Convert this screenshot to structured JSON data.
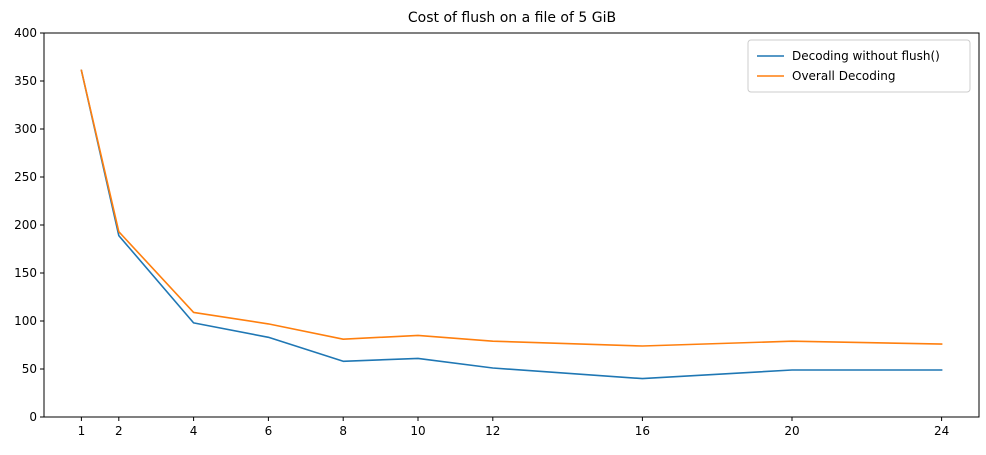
{
  "chart_data": {
    "type": "line",
    "title": "Cost of flush on a file of 5 GiB",
    "xlabel": "",
    "ylabel": "",
    "x": [
      1,
      2,
      4,
      6,
      8,
      10,
      12,
      16,
      20,
      24
    ],
    "xticks": [
      1,
      2,
      4,
      6,
      8,
      10,
      12,
      16,
      20,
      24
    ],
    "xlim": [
      0,
      25
    ],
    "ylim": [
      0,
      400
    ],
    "yticks": [
      0,
      50,
      100,
      150,
      200,
      250,
      300,
      350,
      400
    ],
    "grid": false,
    "legend_position": "top-right",
    "series": [
      {
        "name": "Decoding without flush()",
        "color": "#1f77b4",
        "values": [
          361,
          189,
          98,
          83,
          58,
          61,
          51,
          40,
          49,
          49
        ]
      },
      {
        "name": "Overall Decoding",
        "color": "#ff7f0e",
        "values": [
          361,
          193,
          109,
          97,
          81,
          85,
          79,
          74,
          79,
          76
        ]
      }
    ]
  }
}
